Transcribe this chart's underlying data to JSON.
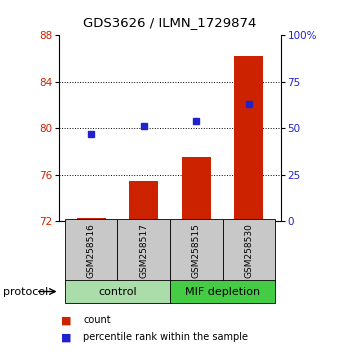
{
  "title": "GDS3626 / ILMN_1729874",
  "samples": [
    "GSM258516",
    "GSM258517",
    "GSM258515",
    "GSM258530"
  ],
  "bar_values": [
    72.3,
    75.5,
    77.5,
    86.2
  ],
  "bar_bottom": 72,
  "percentile_values": [
    47,
    51,
    54,
    63
  ],
  "left_ylim": [
    72,
    88
  ],
  "left_yticks": [
    72,
    76,
    80,
    84,
    88
  ],
  "right_ylim": [
    0,
    100
  ],
  "right_yticks": [
    0,
    25,
    50,
    75,
    100
  ],
  "bar_color": "#cc2200",
  "scatter_color": "#2222cc",
  "grid_color": "#000000",
  "protocol_groups": [
    {
      "label": "control",
      "samples": [
        0,
        1
      ],
      "color": "#aaddaa"
    },
    {
      "label": "MIF depletion",
      "samples": [
        2,
        3
      ],
      "color": "#44cc44"
    }
  ],
  "bg_color": "#ffffff",
  "label_area_color": "#c8c8c8",
  "protocol_label": "protocol",
  "legend_count": "count",
  "legend_percentile": "percentile rank within the sample",
  "title_fontsize": 9.5,
  "tick_fontsize": 7.5,
  "sample_fontsize": 6.5,
  "protocol_fontsize": 8,
  "legend_fontsize": 7
}
